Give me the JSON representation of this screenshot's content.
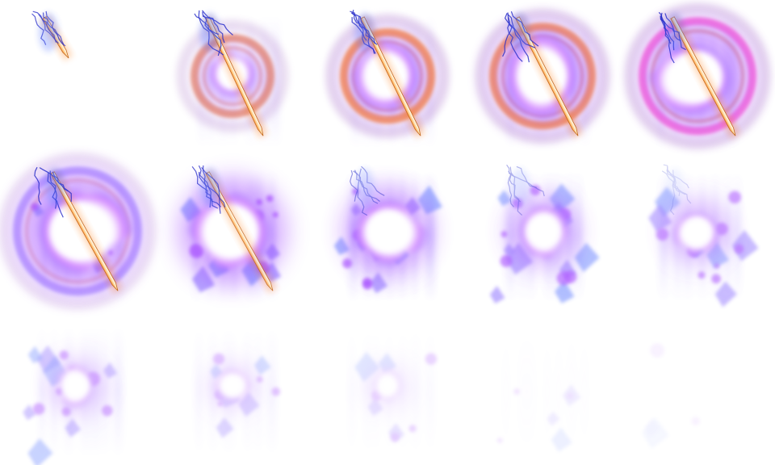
{
  "sheet": {
    "name": "sword-lightning-explosion-sprite-sheet",
    "rows": 3,
    "columns": 5,
    "frame_count": 15,
    "colors": {
      "background": "#ffffff",
      "violet": "#7b5cff",
      "purple": "#a64dff",
      "blue": "#5a78ff",
      "orange": "#ff8a2a",
      "pink": "#ff5fd0",
      "rust": "#e06a45",
      "white": "#ffffff",
      "lightning": "#2a2fc9"
    },
    "frames": [
      {
        "index": 1,
        "sword": 1,
        "lightning": 0.9,
        "ring": 0,
        "ringColor": "none",
        "core": 0,
        "shards": 0,
        "streaks": 0,
        "fade": 1
      },
      {
        "index": 2,
        "sword": 1,
        "lightning": 1,
        "ring": 0.8,
        "ringColor": "rust",
        "core": 0.25,
        "shards": 0,
        "streaks": 0.4,
        "fade": 1
      },
      {
        "index": 3,
        "sword": 1,
        "lightning": 1,
        "ring": 1,
        "ringColor": "orange",
        "core": 0.55,
        "shards": 0,
        "streaks": 0.5,
        "fade": 1
      },
      {
        "index": 4,
        "sword": 1,
        "lightning": 1,
        "ring": 1,
        "ringColor": "orange",
        "core": 0.75,
        "shards": 0,
        "streaks": 0.5,
        "fade": 1
      },
      {
        "index": 5,
        "sword": 1,
        "lightning": 1,
        "ring": 1,
        "ringColor": "pink",
        "core": 0.85,
        "shards": 0,
        "streaks": 0.6,
        "fade": 1
      },
      {
        "index": 6,
        "sword": 1,
        "lightning": 1,
        "ring": 0.6,
        "ringColor": "violet",
        "core": 1,
        "shards": 2,
        "streaks": 0.7,
        "fade": 1
      },
      {
        "index": 7,
        "sword": 0.9,
        "lightning": 0.9,
        "ring": 0,
        "ringColor": "none",
        "core": 0.8,
        "shards": 6,
        "streaks": 0.8,
        "fade": 1
      },
      {
        "index": 8,
        "sword": 0,
        "lightning": 0.6,
        "ring": 0,
        "ringColor": "none",
        "core": 0.6,
        "shards": 8,
        "streaks": 0.8,
        "fade": 0.95
      },
      {
        "index": 9,
        "sword": 0,
        "lightning": 0.5,
        "ring": 0,
        "ringColor": "none",
        "core": 0.4,
        "shards": 9,
        "streaks": 0.7,
        "fade": 0.85
      },
      {
        "index": 10,
        "sword": 0,
        "lightning": 0.3,
        "ring": 0,
        "ringColor": "none",
        "core": 0.3,
        "shards": 8,
        "streaks": 0.6,
        "fade": 0.75
      },
      {
        "index": 11,
        "sword": 0,
        "lightning": 0,
        "ring": 0,
        "ringColor": "none",
        "core": 0.2,
        "shards": 7,
        "streaks": 0.5,
        "fade": 0.6
      },
      {
        "index": 12,
        "sword": 0,
        "lightning": 0,
        "ring": 0,
        "ringColor": "none",
        "core": 0.1,
        "shards": 5,
        "streaks": 0.4,
        "fade": 0.45
      },
      {
        "index": 13,
        "sword": 0,
        "lightning": 0,
        "ring": 0,
        "ringColor": "none",
        "core": 0.05,
        "shards": 4,
        "streaks": 0.3,
        "fade": 0.32
      },
      {
        "index": 14,
        "sword": 0,
        "lightning": 0,
        "ring": 0,
        "ringColor": "none",
        "core": 0,
        "shards": 3,
        "streaks": 0.2,
        "fade": 0.2
      },
      {
        "index": 15,
        "sword": 0,
        "lightning": 0,
        "ring": 0,
        "ringColor": "none",
        "core": 0,
        "shards": 2,
        "streaks": 0.1,
        "fade": 0.1
      }
    ]
  }
}
